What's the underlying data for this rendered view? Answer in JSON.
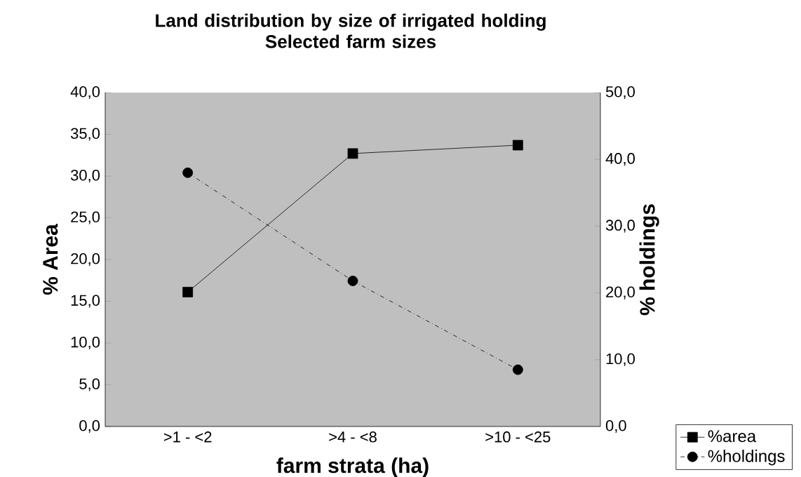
{
  "chart_data": {
    "type": "line",
    "title": "Land distribution by size of irrigated holding\nSelected farm sizes",
    "xlabel": "farm strata (ha)",
    "ylabel": "% Area",
    "y2label": "% holdings",
    "categories": [
      ">1 - <2",
      ">4 - <8",
      ">10 - <25"
    ],
    "series": [
      {
        "name": "%area",
        "color": "#000000",
        "values": [
          16.1,
          32.7,
          33.7
        ],
        "marker": "square",
        "line_style": "solid"
      },
      {
        "name": "%holdings",
        "color": "#000000",
        "values": [
          38.0,
          21.8,
          8.5
        ],
        "axis": "y2",
        "marker": "circle",
        "line_style": "dashed"
      }
    ],
    "ylim": [
      0,
      40
    ],
    "yticks": [
      {
        "value": 0,
        "label": "0,0"
      },
      {
        "value": 5,
        "label": "5,0"
      },
      {
        "value": 10,
        "label": "10,0"
      },
      {
        "value": 15,
        "label": "15,0"
      },
      {
        "value": 20,
        "label": "20,0"
      },
      {
        "value": 25,
        "label": "25,0"
      },
      {
        "value": 30,
        "label": "30,0"
      },
      {
        "value": 35,
        "label": "35,0"
      },
      {
        "value": 40,
        "label": "40,0"
      }
    ],
    "y2lim": [
      0,
      50
    ],
    "y2ticks": [
      {
        "value": 0,
        "label": "0,0"
      },
      {
        "value": 10,
        "label": "10,0"
      },
      {
        "value": 20,
        "label": "20,0"
      },
      {
        "value": 30,
        "label": "30,0"
      },
      {
        "value": 40,
        "label": "40,0"
      },
      {
        "value": 50,
        "label": "50,0"
      }
    ],
    "legend": "bottom right",
    "grid": false
  }
}
